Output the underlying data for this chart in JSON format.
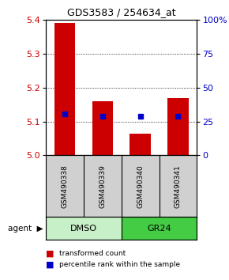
{
  "title": "GDS3583 / 254634_at",
  "samples": [
    "GSM490338",
    "GSM490339",
    "GSM490340",
    "GSM490341"
  ],
  "red_bar_tops": [
    5.39,
    5.16,
    5.065,
    5.17
  ],
  "red_bar_base": 5.0,
  "blue_values": [
    5.122,
    5.115,
    5.115,
    5.115
  ],
  "ylim_left": [
    5.0,
    5.4
  ],
  "ylim_right": [
    0,
    100
  ],
  "yticks_left": [
    5.0,
    5.1,
    5.2,
    5.3,
    5.4
  ],
  "yticks_right": [
    0,
    25,
    50,
    75,
    100
  ],
  "ytick_labels_right": [
    "0",
    "25",
    "50",
    "75",
    "100%"
  ],
  "groups": [
    {
      "label": "DMSO",
      "indices": [
        0,
        1
      ],
      "color": "#c8f0c8"
    },
    {
      "label": "GR24",
      "indices": [
        2,
        3
      ],
      "color": "#44cc44"
    }
  ],
  "group_row_label": "agent",
  "bar_color": "#cc0000",
  "blue_color": "#0000cc",
  "grid_color": "#000000",
  "axis_color_left": "#cc0000",
  "axis_color_right": "#0000cc",
  "bar_width": 0.55,
  "legend_red_label": "transformed count",
  "legend_blue_label": "percentile rank within the sample",
  "sample_bg_color": "#d0d0d0",
  "plot_bg": "#ffffff"
}
